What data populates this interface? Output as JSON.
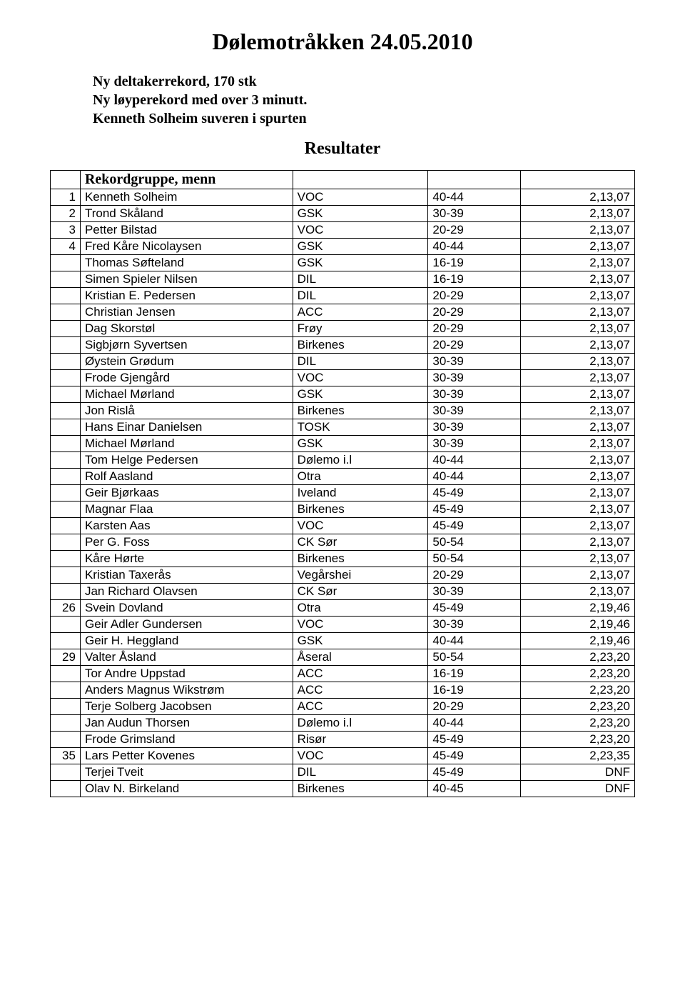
{
  "title": "Dølemotråkken 24.05.2010",
  "intro_lines": [
    "Ny deltakerrekord, 170 stk",
    "Ny løyperekord med over 3 minutt.",
    "Kenneth Solheim suveren i spurten"
  ],
  "results_heading": "Resultater",
  "group_label": "Rekordgruppe, menn",
  "colors": {
    "background": "#ffffff",
    "text": "#000000",
    "border": "#000000"
  },
  "rows": [
    {
      "rank": "1",
      "name": "Kenneth Solheim",
      "club": "VOC",
      "age": "40-44",
      "time": "2,13,07"
    },
    {
      "rank": "2",
      "name": "Trond Skåland",
      "club": "GSK",
      "age": "30-39",
      "time": "2,13,07"
    },
    {
      "rank": "3",
      "name": "Petter Bilstad",
      "club": "VOC",
      "age": "20-29",
      "time": "2,13,07"
    },
    {
      "rank": "4",
      "name": "Fred Kåre Nicolaysen",
      "club": "GSK",
      "age": "40-44",
      "time": "2,13,07"
    },
    {
      "rank": "",
      "name": "Thomas Søfteland",
      "club": "GSK",
      "age": "16-19",
      "time": "2,13,07"
    },
    {
      "rank": "",
      "name": "Simen Spieler Nilsen",
      "club": "DIL",
      "age": "16-19",
      "time": "2,13,07"
    },
    {
      "rank": "",
      "name": "Kristian E. Pedersen",
      "club": "DIL",
      "age": "20-29",
      "time": "2,13,07"
    },
    {
      "rank": "",
      "name": "Christian Jensen",
      "club": "ACC",
      "age": "20-29",
      "time": "2,13,07"
    },
    {
      "rank": "",
      "name": "Dag Skorstøl",
      "club": "Frøy",
      "age": "20-29",
      "time": "2,13,07"
    },
    {
      "rank": "",
      "name": "Sigbjørn Syvertsen",
      "club": "Birkenes",
      "age": "20-29",
      "time": "2,13,07"
    },
    {
      "rank": "",
      "name": "Øystein Grødum",
      "club": "DIL",
      "age": "30-39",
      "time": "2,13,07"
    },
    {
      "rank": "",
      "name": "Frode Gjengård",
      "club": "VOC",
      "age": "30-39",
      "time": "2,13,07"
    },
    {
      "rank": "",
      "name": "Michael Mørland",
      "club": "GSK",
      "age": "30-39",
      "time": "2,13,07"
    },
    {
      "rank": "",
      "name": "Jon Rislå",
      "club": "Birkenes",
      "age": "30-39",
      "time": "2,13,07"
    },
    {
      "rank": "",
      "name": "Hans Einar Danielsen",
      "club": "TOSK",
      "age": "30-39",
      "time": "2,13,07"
    },
    {
      "rank": "",
      "name": "Michael Mørland",
      "club": "GSK",
      "age": "30-39",
      "time": "2,13,07"
    },
    {
      "rank": "",
      "name": "Tom Helge Pedersen",
      "club": "Dølemo i.l",
      "age": "40-44",
      "time": "2,13,07"
    },
    {
      "rank": "",
      "name": "Rolf Aasland",
      "club": "Otra",
      "age": "40-44",
      "time": "2,13,07"
    },
    {
      "rank": "",
      "name": "Geir Bjørkaas",
      "club": "Iveland",
      "age": "45-49",
      "time": "2,13,07"
    },
    {
      "rank": "",
      "name": "Magnar Flaa",
      "club": "Birkenes",
      "age": "45-49",
      "time": "2,13,07"
    },
    {
      "rank": "",
      "name": "Karsten Aas",
      "club": "VOC",
      "age": "45-49",
      "time": "2,13,07"
    },
    {
      "rank": "",
      "name": "Per G. Foss",
      "club": "CK Sør",
      "age": "50-54",
      "time": "2,13,07"
    },
    {
      "rank": "",
      "name": "Kåre Hørte",
      "club": "Birkenes",
      "age": "50-54",
      "time": "2,13,07"
    },
    {
      "rank": "",
      "name": "Kristian Taxerås",
      "club": "Vegårshei",
      "age": "20-29",
      "time": "2,13,07"
    },
    {
      "rank": "",
      "name": "Jan Richard Olavsen",
      "club": "CK Sør",
      "age": "30-39",
      "time": "2,13,07"
    },
    {
      "rank": "26",
      "name": "Svein Dovland",
      "club": "Otra",
      "age": "45-49",
      "time": "2,19,46"
    },
    {
      "rank": "",
      "name": "Geir Adler Gundersen",
      "club": "VOC",
      "age": "30-39",
      "time": "2,19,46"
    },
    {
      "rank": "",
      "name": "Geir H. Heggland",
      "club": "GSK",
      "age": "40-44",
      "time": "2,19,46"
    },
    {
      "rank": "29",
      "name": "Valter Åsland",
      "club": "Åseral",
      "age": "50-54",
      "time": "2,23,20"
    },
    {
      "rank": "",
      "name": "Tor Andre Uppstad",
      "club": "ACC",
      "age": "16-19",
      "time": "2,23,20"
    },
    {
      "rank": "",
      "name": "Anders Magnus Wikstrøm",
      "club": "ACC",
      "age": "16-19",
      "time": "2,23,20"
    },
    {
      "rank": "",
      "name": "Terje Solberg Jacobsen",
      "club": "ACC",
      "age": "20-29",
      "time": "2,23,20"
    },
    {
      "rank": "",
      "name": "Jan Audun Thorsen",
      "club": "Dølemo i.l",
      "age": "40-44",
      "time": "2,23,20"
    },
    {
      "rank": "",
      "name": "Frode Grimsland",
      "club": "Risør",
      "age": "45-49",
      "time": "2,23,20"
    },
    {
      "rank": "35",
      "name": "Lars Petter Kovenes",
      "club": "VOC",
      "age": "45-49",
      "time": "2,23,35"
    },
    {
      "rank": "",
      "name": "Terjei Tveit",
      "club": "DIL",
      "age": "45-49",
      "time": "DNF"
    },
    {
      "rank": "",
      "name": "Olav N. Birkeland",
      "club": "Birkenes",
      "age": "40-45",
      "time": "DNF"
    }
  ]
}
